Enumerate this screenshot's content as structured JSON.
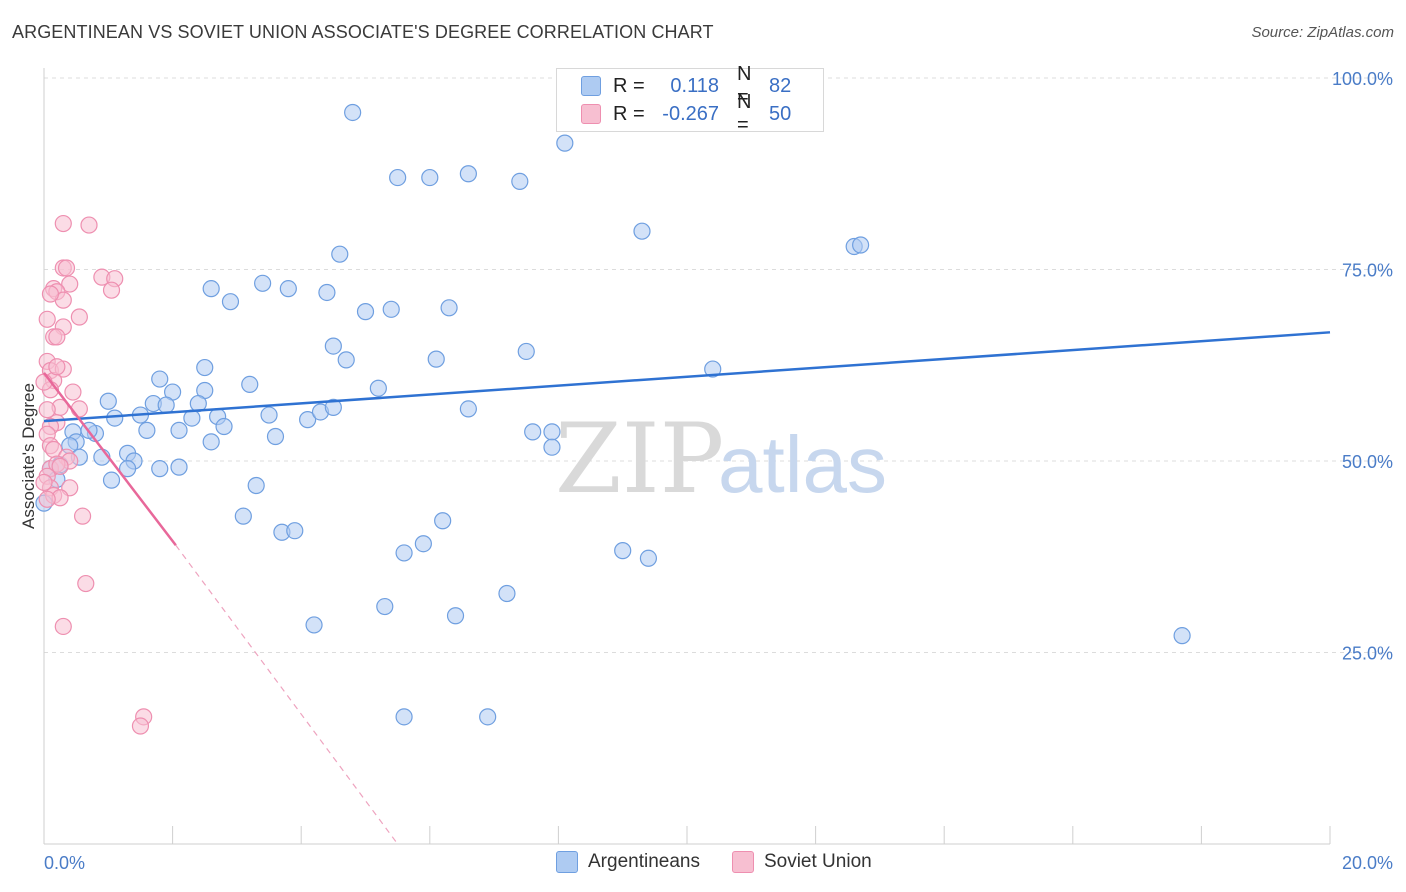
{
  "header": {
    "title": "ARGENTINEAN VS SOVIET UNION ASSOCIATE'S DEGREE CORRELATION CHART",
    "source": "Source: ZipAtlas.com"
  },
  "legend": {
    "rows": [
      {
        "r_label": "R =",
        "r_value": "0.118",
        "n_label": "N =",
        "n_value": "82",
        "color": "#aecbf2"
      },
      {
        "r_label": "R =",
        "r_value": "-0.267",
        "n_label": "N =",
        "n_value": "50",
        "color": "#f7bfd1"
      }
    ]
  },
  "bottom_legend": [
    {
      "label": "Argentineans",
      "color": "#aecbf2"
    },
    {
      "label": "Soviet Union",
      "color": "#f7bfd1"
    }
  ],
  "watermark": {
    "zip": "ZIP",
    "atlas": "atlas"
  },
  "chart_data": {
    "type": "scatter",
    "title": "ARGENTINEAN VS SOVIET UNION ASSOCIATE'S DEGREE CORRELATION CHART",
    "xlabel": "",
    "ylabel": "Associate's Degree",
    "xlim": [
      0,
      20
    ],
    "ylim": [
      0,
      100
    ],
    "x_ticks": [
      "0.0%",
      "20.0%"
    ],
    "y_ticks": [
      "25.0%",
      "50.0%",
      "75.0%",
      "100.0%"
    ],
    "y_tick_values": [
      25,
      50,
      75,
      100
    ],
    "grid": true,
    "legend_position": "top-center",
    "series": [
      {
        "name": "Argentineans",
        "color": "#6f9fe0",
        "fill": "#aecbf2",
        "trend": {
          "x": [
            0,
            20
          ],
          "y": [
            55.2,
            66.8
          ]
        },
        "points": [
          [
            4.8,
            95.5
          ],
          [
            8.1,
            91.5
          ],
          [
            5.5,
            87
          ],
          [
            6.0,
            87
          ],
          [
            6.6,
            87.5
          ],
          [
            7.4,
            86.5
          ],
          [
            9.3,
            80
          ],
          [
            12.6,
            78
          ],
          [
            12.7,
            78.2
          ],
          [
            4.6,
            77
          ],
          [
            2.6,
            72.5
          ],
          [
            3.4,
            73.2
          ],
          [
            3.8,
            72.5
          ],
          [
            4.4,
            72
          ],
          [
            2.9,
            70.8
          ],
          [
            5.0,
            69.5
          ],
          [
            5.4,
            69.8
          ],
          [
            6.3,
            70
          ],
          [
            4.5,
            65
          ],
          [
            4.7,
            63.2
          ],
          [
            6.1,
            63.3
          ],
          [
            7.5,
            64.3
          ],
          [
            10.4,
            62
          ],
          [
            1.8,
            60.7
          ],
          [
            2.5,
            62.2
          ],
          [
            3.2,
            60
          ],
          [
            2.0,
            59
          ],
          [
            2.5,
            59.2
          ],
          [
            5.2,
            59.5
          ],
          [
            1.7,
            57.5
          ],
          [
            2.4,
            57.5
          ],
          [
            1.9,
            57.3
          ],
          [
            1.0,
            57.8
          ],
          [
            1.1,
            55.6
          ],
          [
            1.5,
            56
          ],
          [
            2.3,
            55.6
          ],
          [
            2.7,
            55.8
          ],
          [
            3.5,
            56
          ],
          [
            4.1,
            55.4
          ],
          [
            4.3,
            56.4
          ],
          [
            4.5,
            57
          ],
          [
            6.6,
            56.8
          ],
          [
            1.6,
            54
          ],
          [
            2.1,
            54
          ],
          [
            2.8,
            54.5
          ],
          [
            0.45,
            53.8
          ],
          [
            0.8,
            53.6
          ],
          [
            0.7,
            54
          ],
          [
            0.5,
            52.5
          ],
          [
            0.4,
            52
          ],
          [
            2.6,
            52.5
          ],
          [
            3.6,
            53.2
          ],
          [
            7.6,
            53.8
          ],
          [
            7.9,
            53.8
          ],
          [
            7.9,
            51.8
          ],
          [
            0.9,
            50.5
          ],
          [
            1.3,
            51
          ],
          [
            1.4,
            50
          ],
          [
            1.3,
            49
          ],
          [
            1.8,
            49
          ],
          [
            2.1,
            49.2
          ],
          [
            0.55,
            50.5
          ],
          [
            0.25,
            49.5
          ],
          [
            0.1,
            49
          ],
          [
            0.2,
            47.6
          ],
          [
            1.05,
            47.5
          ],
          [
            3.3,
            46.8
          ],
          [
            3.1,
            42.8
          ],
          [
            6.2,
            42.2
          ],
          [
            3.7,
            40.7
          ],
          [
            3.9,
            40.9
          ],
          [
            5.9,
            39.2
          ],
          [
            5.6,
            38
          ],
          [
            9.0,
            38.3
          ],
          [
            9.4,
            37.3
          ],
          [
            7.2,
            32.7
          ],
          [
            5.3,
            31
          ],
          [
            6.4,
            29.8
          ],
          [
            4.2,
            28.6
          ],
          [
            17.7,
            27.2
          ],
          [
            5.6,
            16.6
          ],
          [
            6.9,
            16.6
          ],
          [
            0.0,
            44.5
          ]
        ]
      },
      {
        "name": "Soviet Union",
        "color": "#ee8fb0",
        "fill": "#f7bfd1",
        "trend": {
          "x": [
            0,
            2.05
          ],
          "y": [
            61.5,
            39
          ]
        },
        "trend_dashed": {
          "x": [
            2.05,
            5.5
          ],
          "y": [
            39,
            0
          ]
        },
        "points": [
          [
            0.3,
            81
          ],
          [
            0.7,
            80.8
          ],
          [
            0.3,
            75.2
          ],
          [
            0.35,
            75.2
          ],
          [
            0.9,
            74
          ],
          [
            1.1,
            73.8
          ],
          [
            1.05,
            72.3
          ],
          [
            0.4,
            73.1
          ],
          [
            0.15,
            72.5
          ],
          [
            0.2,
            72.1
          ],
          [
            0.3,
            71
          ],
          [
            0.1,
            71.8
          ],
          [
            0.55,
            68.8
          ],
          [
            0.05,
            68.5
          ],
          [
            0.3,
            67.5
          ],
          [
            0.15,
            66.2
          ],
          [
            0.2,
            66.2
          ],
          [
            0.05,
            63
          ],
          [
            0.1,
            61.8
          ],
          [
            0.3,
            62
          ],
          [
            0.15,
            60.5
          ],
          [
            0.1,
            59.3
          ],
          [
            0.45,
            59
          ],
          [
            0.25,
            57
          ],
          [
            0.55,
            56.8
          ],
          [
            0.05,
            56.7
          ],
          [
            0.2,
            55
          ],
          [
            0.1,
            54.5
          ],
          [
            0.05,
            53.5
          ],
          [
            0.1,
            52
          ],
          [
            0.15,
            51.5
          ],
          [
            0.35,
            50.5
          ],
          [
            0.4,
            50
          ],
          [
            0.1,
            49
          ],
          [
            0.2,
            49.6
          ],
          [
            0.25,
            49.3
          ],
          [
            0.05,
            48
          ],
          [
            0.1,
            46.5
          ],
          [
            0.4,
            46.5
          ],
          [
            0.15,
            45.5
          ],
          [
            0.25,
            45.2
          ],
          [
            0.05,
            45
          ],
          [
            0.6,
            42.8
          ],
          [
            0.65,
            34
          ],
          [
            0.3,
            28.4
          ],
          [
            1.55,
            16.6
          ],
          [
            1.5,
            15.4
          ],
          [
            0.0,
            47.2
          ],
          [
            0.0,
            60.3
          ],
          [
            0.2,
            62.3
          ]
        ]
      }
    ]
  }
}
